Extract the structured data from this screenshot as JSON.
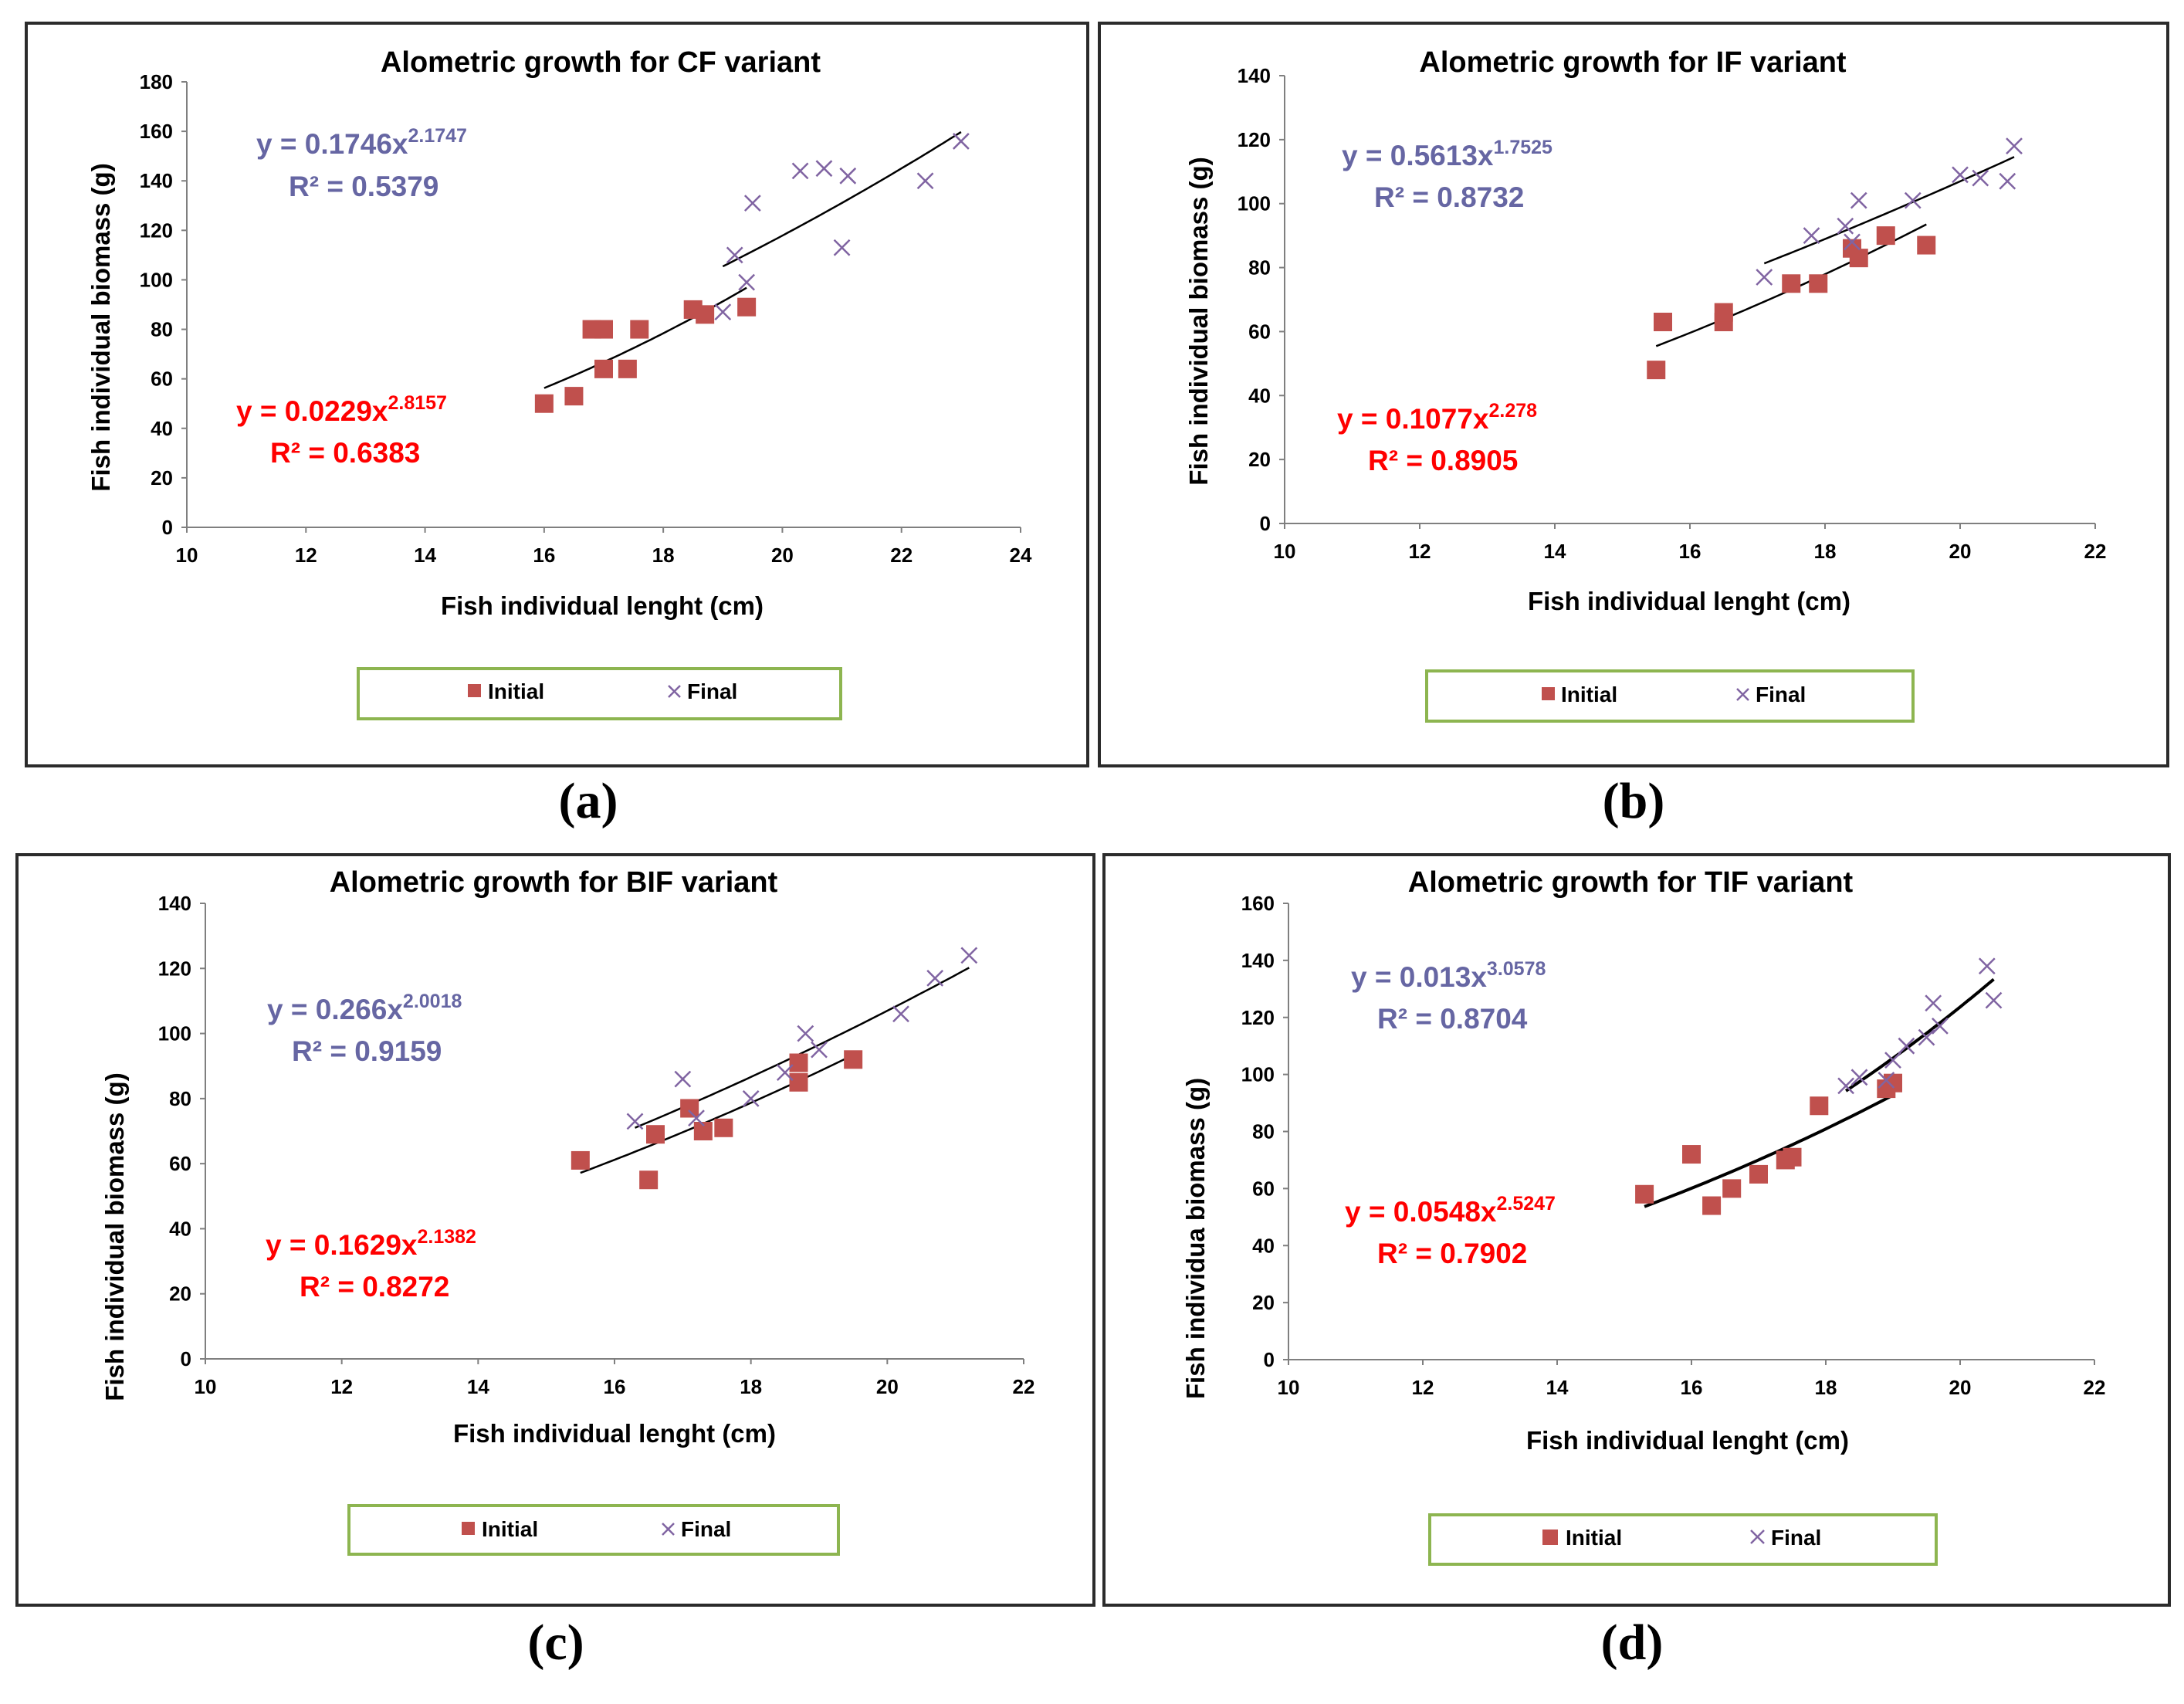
{
  "panels": [
    {
      "label": "(a)",
      "chart_data": {
        "type": "scatter",
        "title": "Alometric growth for CF variant",
        "xlabel": "Fish individual lenght (cm)",
        "ylabel": "Fish individual biomass (g)",
        "xlim": [
          10,
          24
        ],
        "xticks": [
          10,
          12,
          14,
          16,
          18,
          20,
          22,
          24
        ],
        "ylim": [
          0,
          180
        ],
        "yticks": [
          0,
          20,
          40,
          60,
          80,
          100,
          120,
          140,
          160,
          180
        ],
        "legend": [
          "Initial",
          "Final"
        ],
        "series": [
          {
            "name": "Initial",
            "marker": "square",
            "color": "#c0504d",
            "points": [
              [
                16.0,
                50
              ],
              [
                16.5,
                53
              ],
              [
                16.8,
                80
              ],
              [
                17.0,
                80
              ],
              [
                17.0,
                64
              ],
              [
                17.4,
                64
              ],
              [
                17.6,
                80
              ],
              [
                18.5,
                88
              ],
              [
                18.7,
                86
              ],
              [
                19.4,
                89
              ]
            ],
            "equation": "y = 0.0229x",
            "exponent": "2.8157",
            "r2": "R² = 0.6383",
            "coef": 0.0229,
            "pow": 2.8157,
            "fit_range": [
              16.0,
              19.4
            ]
          },
          {
            "name": "Final",
            "marker": "x",
            "color": "#8064a2",
            "points": [
              [
                19.0,
                87
              ],
              [
                19.2,
                110
              ],
              [
                19.4,
                99
              ],
              [
                19.5,
                131
              ],
              [
                20.3,
                144
              ],
              [
                20.7,
                145
              ],
              [
                21.0,
                113
              ],
              [
                21.1,
                142
              ],
              [
                22.4,
                140
              ],
              [
                23.0,
                156
              ]
            ],
            "equation": "y = 0.1746x",
            "exponent": "2.1747",
            "r2": "R² = 0.5379",
            "coef": 0.1746,
            "pow": 2.1747,
            "fit_range": [
              19.0,
              23.0
            ]
          }
        ]
      }
    },
    {
      "label": "(b)",
      "chart_data": {
        "type": "scatter",
        "title": "Alometric growth for IF variant",
        "xlabel": "Fish individual lenght (cm)",
        "ylabel": "Fish individual biomass (g)",
        "xlim": [
          10,
          22
        ],
        "xticks": [
          10,
          12,
          14,
          16,
          18,
          20,
          22
        ],
        "ylim": [
          0,
          140
        ],
        "yticks": [
          0,
          20,
          40,
          60,
          80,
          100,
          120,
          140
        ],
        "legend": [
          "Initial",
          "Final"
        ],
        "series": [
          {
            "name": "Initial",
            "marker": "square",
            "color": "#c0504d",
            "points": [
              [
                15.5,
                48
              ],
              [
                15.6,
                63
              ],
              [
                16.5,
                63
              ],
              [
                16.5,
                66
              ],
              [
                17.5,
                75
              ],
              [
                17.9,
                75
              ],
              [
                18.4,
                86
              ],
              [
                18.5,
                83
              ],
              [
                18.9,
                90
              ],
              [
                19.5,
                87
              ]
            ],
            "equation": "y = 0.1077x",
            "exponent": "2.278",
            "r2": "R² = 0.8905",
            "coef": 0.1077,
            "pow": 2.278,
            "fit_range": [
              15.5,
              19.5
            ]
          },
          {
            "name": "Final",
            "marker": "x",
            "color": "#8064a2",
            "points": [
              [
                17.1,
                77
              ],
              [
                17.8,
                90
              ],
              [
                18.3,
                93
              ],
              [
                18.4,
                88
              ],
              [
                18.5,
                101
              ],
              [
                19.3,
                101
              ],
              [
                20.0,
                109
              ],
              [
                20.3,
                108
              ],
              [
                20.7,
                107
              ],
              [
                20.8,
                118
              ]
            ],
            "equation": "y = 0.5613x",
            "exponent": "1.7525",
            "r2": "R² = 0.8732",
            "coef": 0.5613,
            "pow": 1.7525,
            "fit_range": [
              17.1,
              20.8
            ]
          }
        ]
      }
    },
    {
      "label": "(c)",
      "chart_data": {
        "type": "scatter",
        "title": "Alometric growth for BIF variant",
        "xlabel": "Fish individual lenght (cm)",
        "ylabel": "Fish individual biomass (g)",
        "xlim": [
          10,
          22
        ],
        "xticks": [
          10,
          12,
          14,
          16,
          18,
          20,
          22
        ],
        "ylim": [
          0,
          140
        ],
        "yticks": [
          0,
          20,
          40,
          60,
          80,
          100,
          120,
          140
        ],
        "legend": [
          "Initial",
          "Final"
        ],
        "series": [
          {
            "name": "Initial",
            "marker": "square",
            "color": "#c0504d",
            "points": [
              [
                15.5,
                61
              ],
              [
                16.5,
                55
              ],
              [
                16.6,
                69
              ],
              [
                17.1,
                77
              ],
              [
                17.3,
                70
              ],
              [
                17.6,
                71
              ],
              [
                18.7,
                85
              ],
              [
                18.7,
                91
              ],
              [
                19.5,
                92
              ]
            ],
            "equation": "y = 0.1629x",
            "exponent": "2.1382",
            "r2": "R² = 0.8272",
            "coef": 0.1629,
            "pow": 2.1382,
            "fit_range": [
              15.5,
              19.5
            ]
          },
          {
            "name": "Final",
            "marker": "x",
            "color": "#8064a2",
            "points": [
              [
                16.3,
                73
              ],
              [
                17.0,
                86
              ],
              [
                17.2,
                74
              ],
              [
                18.0,
                80
              ],
              [
                18.5,
                88
              ],
              [
                18.8,
                100
              ],
              [
                19.0,
                95
              ],
              [
                20.2,
                106
              ],
              [
                20.7,
                117
              ],
              [
                21.2,
                124
              ]
            ],
            "equation": "y = 0.266x",
            "exponent": "2.0018",
            "r2": "R² = 0.9159",
            "coef": 0.266,
            "pow": 2.0018,
            "fit_range": [
              16.3,
              21.2
            ]
          }
        ]
      }
    },
    {
      "label": "(d)",
      "chart_data": {
        "type": "scatter",
        "title": "Alometric growth for TIF variant",
        "xlabel": "Fish individual lenght (cm)",
        "ylabel": "Fish individua biomass (g)",
        "xlim": [
          10,
          22
        ],
        "xticks": [
          10,
          12,
          14,
          16,
          18,
          20,
          22
        ],
        "ylim": [
          0,
          160
        ],
        "yticks": [
          0,
          20,
          40,
          60,
          80,
          100,
          120,
          140,
          160
        ],
        "legend": [
          "Initial",
          "Final"
        ],
        "series": [
          {
            "name": "Initial",
            "marker": "square",
            "color": "#c0504d",
            "points": [
              [
                15.3,
                58
              ],
              [
                16.0,
                72
              ],
              [
                16.3,
                54
              ],
              [
                16.6,
                60
              ],
              [
                17.0,
                65
              ],
              [
                17.4,
                70
              ],
              [
                17.5,
                71
              ],
              [
                17.9,
                89
              ],
              [
                18.9,
                95
              ],
              [
                19.0,
                97
              ]
            ],
            "equation": "y = 0.0548x",
            "exponent": "2.5247",
            "r2": "R² = 0.7902",
            "coef": 0.0548,
            "pow": 2.5247,
            "fit_range": [
              15.3,
              19.0
            ]
          },
          {
            "name": "Final",
            "marker": "x",
            "color": "#8064a2",
            "points": [
              [
                18.3,
                96
              ],
              [
                18.5,
                99
              ],
              [
                18.9,
                98
              ],
              [
                19.0,
                105
              ],
              [
                19.2,
                110
              ],
              [
                19.5,
                113
              ],
              [
                19.6,
                125
              ],
              [
                19.7,
                117
              ],
              [
                20.4,
                138
              ],
              [
                20.5,
                126
              ]
            ],
            "equation": "y = 0.013x",
            "exponent": "3.0578",
            "r2": "R² = 0.8704",
            "coef": 0.013,
            "pow": 3.0578,
            "fit_range": [
              18.3,
              20.5
            ]
          }
        ]
      }
    }
  ]
}
